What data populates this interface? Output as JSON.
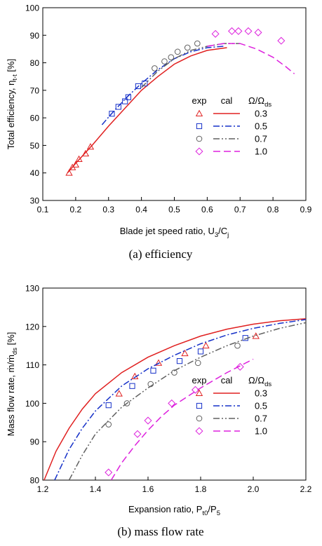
{
  "chart_data": [
    {
      "type": "scatter",
      "caption": "(a)  efficiency",
      "xlabel": "Blade jet speed ratio, U",
      "xlabel_sub": "3",
      "xlabel_mid": "/C",
      "xlabel_sub2": "j",
      "ylabel": "Total efficiency, η",
      "ylabel_sub": "t-t",
      "ylabel_unit": " [%]",
      "xlim": [
        0.1,
        0.9
      ],
      "ylim": [
        30,
        100
      ],
      "xticks": [
        "0.1",
        "0.2",
        "0.3",
        "0.4",
        "0.5",
        "0.6",
        "0.7",
        "0.8",
        "0.9"
      ],
      "yticks": [
        "30",
        "40",
        "50",
        "60",
        "70",
        "80",
        "90",
        "100"
      ],
      "legend": {
        "placement": "center-right",
        "h_exp": "exp",
        "h_cal": "cal",
        "h_ratio": "Ω/Ω",
        "h_ratio_sub": "ds"
      },
      "series": [
        {
          "name": "0.3",
          "color": "#e02020",
          "marker": "triangle",
          "dash": "",
          "exp": [
            [
              0.18,
              40
            ],
            [
              0.19,
              42
            ],
            [
              0.2,
              43
            ],
            [
              0.21,
              45
            ],
            [
              0.23,
              47
            ],
            [
              0.245,
              49.5
            ]
          ],
          "cal": [
            [
              0.175,
              40
            ],
            [
              0.2,
              43.5
            ],
            [
              0.25,
              50
            ],
            [
              0.3,
              57
            ],
            [
              0.35,
              63.5
            ],
            [
              0.4,
              70
            ],
            [
              0.45,
              75
            ],
            [
              0.5,
              79.5
            ],
            [
              0.55,
              82.5
            ],
            [
              0.6,
              84.5
            ],
            [
              0.66,
              85.5
            ]
          ]
        },
        {
          "name": "0.5",
          "color": "#1530c8",
          "marker": "square",
          "dash": "9,3,2,3",
          "exp": [
            [
              0.31,
              61.5
            ],
            [
              0.33,
              64
            ],
            [
              0.35,
              66
            ],
            [
              0.36,
              67.5
            ],
            [
              0.39,
              71.5
            ],
            [
              0.41,
              72.5
            ]
          ],
          "cal": [
            [
              0.28,
              57.5
            ],
            [
              0.32,
              63
            ],
            [
              0.36,
              68
            ],
            [
              0.4,
              72.5
            ],
            [
              0.45,
              77.5
            ],
            [
              0.5,
              81.5
            ],
            [
              0.55,
              84
            ],
            [
              0.6,
              85.5
            ],
            [
              0.65,
              86
            ]
          ]
        },
        {
          "name": "0.7",
          "color": "#606060",
          "marker": "circle",
          "dash": "9,3,2,3,2,3",
          "exp": [
            [
              0.44,
              78
            ],
            [
              0.47,
              80.5
            ],
            [
              0.49,
              82
            ],
            [
              0.51,
              84
            ],
            [
              0.54,
              85.5
            ],
            [
              0.57,
              87
            ]
          ],
          "cal": [
            [
              0.4,
              71
            ],
            [
              0.45,
              77
            ],
            [
              0.5,
              81.5
            ],
            [
              0.55,
              84.5
            ],
            [
              0.6,
              86
            ],
            [
              0.65,
              87
            ],
            [
              0.7,
              87
            ]
          ]
        },
        {
          "name": "1.0",
          "color": "#dd20dd",
          "marker": "diamond",
          "dash": "10,5",
          "exp": [
            [
              0.625,
              90.5
            ],
            [
              0.675,
              91.5
            ],
            [
              0.695,
              91.5
            ],
            [
              0.725,
              91.5
            ],
            [
              0.755,
              91
            ],
            [
              0.825,
              88
            ]
          ],
          "cal": [
            [
              0.6,
              86
            ],
            [
              0.65,
              87
            ],
            [
              0.7,
              87
            ],
            [
              0.75,
              85
            ],
            [
              0.8,
              82
            ],
            [
              0.84,
              78.5
            ],
            [
              0.865,
              76
            ]
          ]
        }
      ]
    },
    {
      "type": "scatter",
      "caption": "(b)  mass  flow  rate",
      "xlabel": "Expansion ratio, P",
      "xlabel_sub": "t0",
      "xlabel_mid": "/P",
      "xlabel_sub2": "5",
      "ylabel": "Mass flow rate, ṁ/ṁ",
      "ylabel_sub": "ds",
      "ylabel_unit": " [%]",
      "xlim": [
        1.2,
        2.2
      ],
      "ylim": [
        80,
        130
      ],
      "xticks": [
        "1.2",
        "1.4",
        "1.6",
        "1.8",
        "2.0",
        "2.2"
      ],
      "yticks": [
        "80",
        "90",
        "100",
        "110",
        "120",
        "130"
      ],
      "legend": {
        "placement": "bottom-right",
        "h_exp": "exp",
        "h_cal": "cal",
        "h_ratio": "Ω/Ω",
        "h_ratio_sub": "ds"
      },
      "series": [
        {
          "name": "0.3",
          "color": "#e02020",
          "marker": "triangle",
          "dash": "",
          "exp": [
            [
              1.49,
              102.5
            ],
            [
              1.55,
              107
            ],
            [
              1.64,
              110.5
            ],
            [
              1.74,
              113
            ],
            [
              1.82,
              115
            ],
            [
              2.01,
              117.5
            ]
          ],
          "cal": [
            [
              1.205,
              80
            ],
            [
              1.25,
              87.5
            ],
            [
              1.3,
              93.5
            ],
            [
              1.35,
              98.5
            ],
            [
              1.4,
              102.5
            ],
            [
              1.5,
              108
            ],
            [
              1.6,
              112
            ],
            [
              1.7,
              115
            ],
            [
              1.8,
              117.5
            ],
            [
              1.9,
              119.3
            ],
            [
              2.0,
              120.6
            ],
            [
              2.1,
              121.5
            ],
            [
              2.2,
              122
            ]
          ]
        },
        {
          "name": "0.5",
          "color": "#1530c8",
          "marker": "square",
          "dash": "9,3,2,3",
          "exp": [
            [
              1.45,
              99.5
            ],
            [
              1.54,
              104.5
            ],
            [
              1.62,
              108.5
            ],
            [
              1.72,
              111
            ],
            [
              1.8,
              113.5
            ],
            [
              1.97,
              117
            ]
          ],
          "cal": [
            [
              1.245,
              80
            ],
            [
              1.3,
              88
            ],
            [
              1.35,
              93.5
            ],
            [
              1.4,
              98
            ],
            [
              1.5,
              104.5
            ],
            [
              1.6,
              109
            ],
            [
              1.7,
              112.5
            ],
            [
              1.8,
              115.5
            ],
            [
              1.9,
              117.8
            ],
            [
              2.0,
              119.5
            ],
            [
              2.1,
              120.8
            ],
            [
              2.2,
              121.8
            ]
          ]
        },
        {
          "name": "0.7",
          "color": "#606060",
          "marker": "circle",
          "dash": "9,3,2,3,2,3",
          "exp": [
            [
              1.45,
              94.5
            ],
            [
              1.52,
              100
            ],
            [
              1.61,
              105
            ],
            [
              1.7,
              108
            ],
            [
              1.79,
              110.5
            ],
            [
              1.94,
              115
            ]
          ],
          "cal": [
            [
              1.3,
              80
            ],
            [
              1.35,
              86.5
            ],
            [
              1.4,
              92
            ],
            [
              1.5,
              99
            ],
            [
              1.6,
              104
            ],
            [
              1.7,
              108.5
            ],
            [
              1.8,
              112
            ],
            [
              1.9,
              115
            ],
            [
              2.0,
              117.5
            ],
            [
              2.1,
              119.5
            ],
            [
              2.2,
              121
            ]
          ]
        },
        {
          "name": "1.0",
          "color": "#dd20dd",
          "marker": "diamond",
          "dash": "10,5",
          "exp": [
            [
              1.45,
              82
            ],
            [
              1.56,
              92
            ],
            [
              1.6,
              95.5
            ],
            [
              1.69,
              100
            ],
            [
              1.78,
              103.5
            ],
            [
              1.95,
              109.5
            ]
          ],
          "cal": [
            [
              1.46,
              80
            ],
            [
              1.5,
              84.5
            ],
            [
              1.55,
              89
            ],
            [
              1.6,
              93
            ],
            [
              1.65,
              96.5
            ],
            [
              1.7,
              99.5
            ],
            [
              1.8,
              104
            ],
            [
              1.9,
              108
            ],
            [
              2.0,
              111.5
            ]
          ]
        }
      ]
    }
  ]
}
